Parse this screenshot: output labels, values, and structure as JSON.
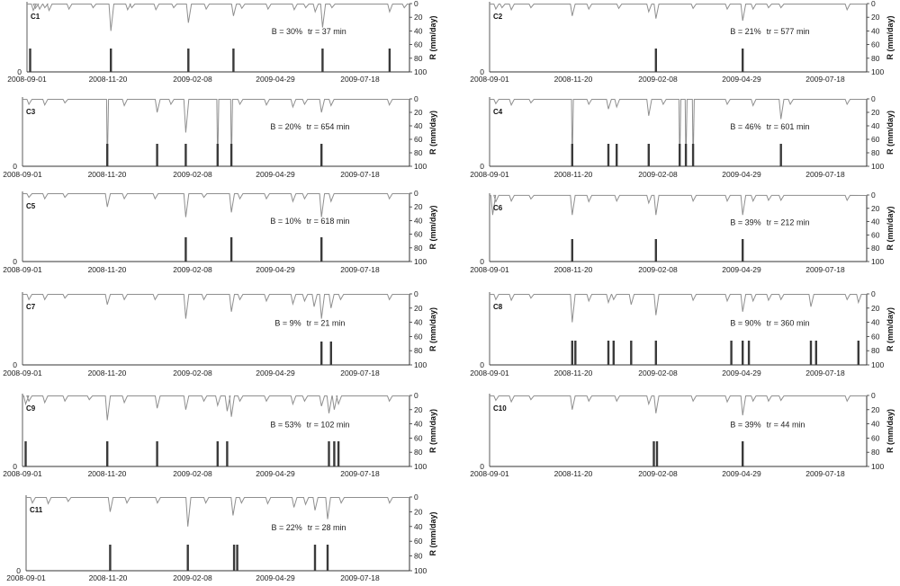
{
  "axis": {
    "x_ticks": [
      "2008-09-01",
      "2008-11-20",
      "2009-02-08",
      "2009-04-29",
      "2009-07-18"
    ],
    "y_ticks": [
      "0",
      "20",
      "40",
      "60",
      "80",
      "100"
    ],
    "y_label": "R (mm/day)",
    "left_zero": "0"
  },
  "chart_data": [
    {
      "type": "bar",
      "title": "C1",
      "b": "B = 30%",
      "tr": "tr = 37 min",
      "xlabel": "",
      "ylabel": "R (mm/day)",
      "ylim": [
        100,
        0
      ],
      "x_range": [
        "2008-09-01",
        "2009-09-01"
      ],
      "events": [
        3,
        80,
        154,
        197,
        282,
        346
      ],
      "rain": [
        [
          6,
          10
        ],
        [
          8,
          7
        ],
        [
          12,
          8
        ],
        [
          17,
          6
        ],
        [
          21,
          10
        ],
        [
          40,
          8
        ],
        [
          63,
          6
        ],
        [
          80,
          40
        ],
        [
          96,
          9
        ],
        [
          100,
          6
        ],
        [
          123,
          9
        ],
        [
          140,
          6
        ],
        [
          154,
          28
        ],
        [
          171,
          8
        ],
        [
          197,
          18
        ],
        [
          205,
          7
        ],
        [
          230,
          8
        ],
        [
          255,
          9
        ],
        [
          266,
          6
        ],
        [
          275,
          12
        ],
        [
          282,
          35
        ],
        [
          291,
          6
        ],
        [
          346,
          12
        ],
        [
          360,
          6
        ]
      ]
    },
    {
      "type": "bar",
      "title": "C2",
      "b": "B = 21%",
      "tr": "tr = 577 min",
      "xlabel": "",
      "ylabel": "R (mm/day)",
      "ylim": [
        100,
        0
      ],
      "x_range": [
        "2008-09-01",
        "2009-09-01"
      ],
      "events": [
        161,
        245
      ],
      "rain": [
        [
          6,
          8
        ],
        [
          12,
          6
        ],
        [
          21,
          9
        ],
        [
          40,
          6
        ],
        [
          80,
          18
        ],
        [
          96,
          8
        ],
        [
          125,
          7
        ],
        [
          154,
          12
        ],
        [
          161,
          22
        ],
        [
          197,
          7
        ],
        [
          230,
          8
        ],
        [
          245,
          25
        ],
        [
          255,
          8
        ],
        [
          270,
          6
        ],
        [
          282,
          6
        ],
        [
          346,
          9
        ]
      ]
    },
    {
      "type": "bar",
      "title": "C3",
      "b": "B = 20%",
      "tr": "tr = 654 min",
      "xlabel": "",
      "ylabel": "R (mm/day)",
      "ylim": [
        100,
        0
      ],
      "x_range": [
        "2008-09-01",
        "2009-09-01"
      ],
      "events": [
        80,
        127,
        154,
        184,
        197,
        282
      ],
      "rain": [
        [
          6,
          8
        ],
        [
          21,
          9
        ],
        [
          40,
          6
        ],
        [
          80,
          100
        ],
        [
          96,
          10
        ],
        [
          127,
          20
        ],
        [
          140,
          8
        ],
        [
          154,
          50
        ],
        [
          184,
          100
        ],
        [
          197,
          100
        ],
        [
          205,
          8
        ],
        [
          230,
          9
        ],
        [
          255,
          12
        ],
        [
          266,
          8
        ],
        [
          282,
          20
        ],
        [
          291,
          10
        ],
        [
          346,
          9
        ]
      ]
    },
    {
      "type": "bar",
      "title": "C4",
      "b": "B = 46%",
      "tr": "tr = 601 min",
      "xlabel": "",
      "ylabel": "R (mm/day)",
      "ylim": [
        100,
        0
      ],
      "x_range": [
        "2008-09-01",
        "2009-09-01"
      ],
      "events": [
        80,
        115,
        123,
        154,
        184,
        190,
        197,
        282
      ],
      "rain": [
        [
          6,
          7
        ],
        [
          21,
          9
        ],
        [
          40,
          6
        ],
        [
          80,
          100
        ],
        [
          96,
          8
        ],
        [
          115,
          15
        ],
        [
          123,
          12
        ],
        [
          154,
          25
        ],
        [
          168,
          8
        ],
        [
          184,
          100
        ],
        [
          190,
          100
        ],
        [
          197,
          100
        ],
        [
          230,
          8
        ],
        [
          255,
          10
        ],
        [
          282,
          30
        ],
        [
          291,
          8
        ],
        [
          346,
          8
        ]
      ]
    },
    {
      "type": "bar",
      "title": "C5",
      "b": "B = 10%",
      "tr": "tr = 618 min",
      "xlabel": "",
      "ylabel": "R (mm/day)",
      "ylim": [
        100,
        0
      ],
      "x_range": [
        "2008-09-01",
        "2009-09-01"
      ],
      "events": [
        154,
        197,
        282
      ],
      "rain": [
        [
          6,
          6
        ],
        [
          21,
          8
        ],
        [
          40,
          6
        ],
        [
          80,
          20
        ],
        [
          96,
          8
        ],
        [
          125,
          8
        ],
        [
          154,
          35
        ],
        [
          171,
          6
        ],
        [
          197,
          28
        ],
        [
          205,
          8
        ],
        [
          230,
          8
        ],
        [
          255,
          12
        ],
        [
          266,
          8
        ],
        [
          282,
          35
        ],
        [
          291,
          12
        ],
        [
          346,
          8
        ]
      ]
    },
    {
      "type": "bar",
      "title": "C6",
      "b": "B = 39%",
      "tr": "tr = 212 min",
      "xlabel": "",
      "ylabel": "R (mm/day)",
      "ylim": [
        100,
        0
      ],
      "x_range": [
        "2008-09-01",
        "2009-09-01"
      ],
      "events": [
        80,
        161,
        245
      ],
      "rain": [
        [
          3,
          30
        ],
        [
          6,
          10
        ],
        [
          21,
          9
        ],
        [
          40,
          6
        ],
        [
          80,
          30
        ],
        [
          96,
          10
        ],
        [
          123,
          9
        ],
        [
          154,
          12
        ],
        [
          161,
          30
        ],
        [
          197,
          9
        ],
        [
          230,
          9
        ],
        [
          245,
          30
        ],
        [
          255,
          9
        ],
        [
          270,
          8
        ],
        [
          282,
          8
        ],
        [
          346,
          8
        ]
      ]
    },
    {
      "type": "bar",
      "title": "C7",
      "b": "B = 9%",
      "tr": "tr = 21 min",
      "xlabel": "",
      "ylabel": "R (mm/day)",
      "ylim": [
        100,
        0
      ],
      "x_range": [
        "2008-09-01",
        "2009-09-01"
      ],
      "events": [
        282,
        291
      ],
      "rain": [
        [
          6,
          8
        ],
        [
          21,
          8
        ],
        [
          40,
          6
        ],
        [
          80,
          15
        ],
        [
          96,
          8
        ],
        [
          125,
          8
        ],
        [
          154,
          35
        ],
        [
          171,
          8
        ],
        [
          197,
          25
        ],
        [
          205,
          8
        ],
        [
          230,
          10
        ],
        [
          255,
          14
        ],
        [
          266,
          10
        ],
        [
          275,
          18
        ],
        [
          282,
          35
        ],
        [
          291,
          20
        ],
        [
          300,
          8
        ],
        [
          346,
          8
        ]
      ]
    },
    {
      "type": "bar",
      "title": "C8",
      "b": "B = 90%",
      "tr": "tr = 360 min",
      "xlabel": "",
      "ylabel": "R (mm/day)",
      "ylim": [
        100,
        0
      ],
      "x_range": [
        "2008-09-01",
        "2009-09-01"
      ],
      "events": [
        80,
        83,
        115,
        120,
        137,
        161,
        234,
        245,
        251,
        311,
        316,
        357
      ],
      "rain": [
        [
          6,
          8
        ],
        [
          21,
          9
        ],
        [
          40,
          6
        ],
        [
          80,
          40
        ],
        [
          96,
          10
        ],
        [
          115,
          12
        ],
        [
          120,
          8
        ],
        [
          137,
          15
        ],
        [
          161,
          30
        ],
        [
          197,
          9
        ],
        [
          230,
          10
        ],
        [
          245,
          25
        ],
        [
          255,
          10
        ],
        [
          270,
          9
        ],
        [
          282,
          8
        ],
        [
          311,
          18
        ],
        [
          346,
          8
        ],
        [
          357,
          12
        ]
      ]
    },
    {
      "type": "bar",
      "title": "C9",
      "b": "B = 53%",
      "tr": "tr = 102 min",
      "xlabel": "",
      "ylabel": "R (mm/day)",
      "ylim": [
        100,
        0
      ],
      "x_range": [
        "2008-09-01",
        "2009-09-01"
      ],
      "events": [
        3,
        80,
        127,
        184,
        193,
        289,
        294,
        298
      ],
      "rain": [
        [
          3,
          12
        ],
        [
          6,
          8
        ],
        [
          21,
          10
        ],
        [
          40,
          8
        ],
        [
          63,
          6
        ],
        [
          80,
          35
        ],
        [
          96,
          10
        ],
        [
          127,
          18
        ],
        [
          154,
          20
        ],
        [
          171,
          8
        ],
        [
          184,
          14
        ],
        [
          193,
          22
        ],
        [
          197,
          30
        ],
        [
          205,
          8
        ],
        [
          230,
          8
        ],
        [
          255,
          12
        ],
        [
          266,
          8
        ],
        [
          282,
          15
        ],
        [
          289,
          25
        ],
        [
          294,
          20
        ],
        [
          298,
          12
        ],
        [
          346,
          8
        ]
      ]
    },
    {
      "type": "bar",
      "title": "C10",
      "b": "B = 39%",
      "tr": "tr = 44 min",
      "xlabel": "",
      "ylabel": "R (mm/day)",
      "ylim": [
        100,
        0
      ],
      "x_range": [
        "2008-09-01",
        "2009-09-01"
      ],
      "events": [
        159,
        162,
        245
      ],
      "rain": [
        [
          6,
          7
        ],
        [
          21,
          9
        ],
        [
          40,
          6
        ],
        [
          80,
          20
        ],
        [
          96,
          8
        ],
        [
          123,
          8
        ],
        [
          154,
          12
        ],
        [
          161,
          25
        ],
        [
          197,
          8
        ],
        [
          230,
          9
        ],
        [
          245,
          28
        ],
        [
          255,
          8
        ],
        [
          270,
          8
        ],
        [
          282,
          7
        ],
        [
          346,
          8
        ]
      ]
    },
    {
      "type": "bar",
      "title": "C11",
      "b": "B = 22%",
      "tr": "tr = 28 min",
      "xlabel": "",
      "ylabel": "R (mm/day)",
      "ylim": [
        100,
        0
      ],
      "x_range": [
        "2008-09-01",
        "2009-09-01"
      ],
      "events": [
        80,
        154,
        198,
        201,
        275,
        287
      ],
      "rain": [
        [
          6,
          8
        ],
        [
          21,
          9
        ],
        [
          40,
          6
        ],
        [
          80,
          20
        ],
        [
          96,
          8
        ],
        [
          125,
          8
        ],
        [
          154,
          40
        ],
        [
          171,
          8
        ],
        [
          197,
          25
        ],
        [
          205,
          8
        ],
        [
          230,
          9
        ],
        [
          255,
          14
        ],
        [
          266,
          10
        ],
        [
          275,
          18
        ],
        [
          287,
          30
        ],
        [
          300,
          8
        ],
        [
          346,
          8
        ]
      ]
    }
  ]
}
